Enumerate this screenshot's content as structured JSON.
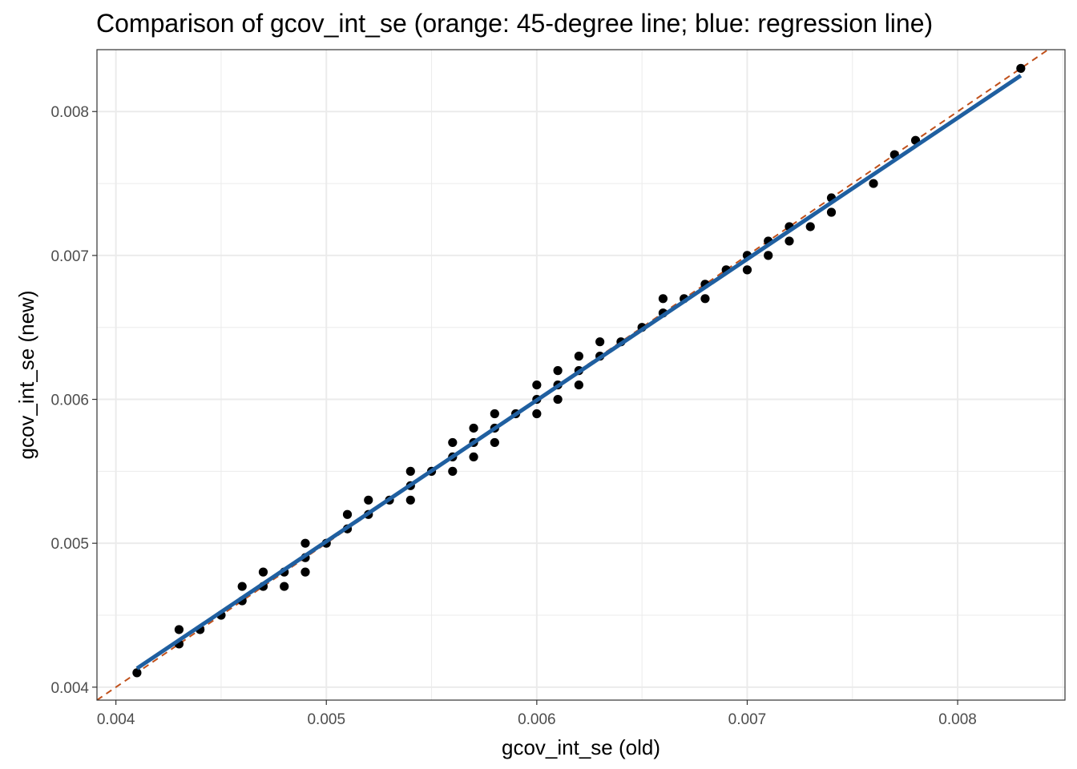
{
  "chart_data": {
    "type": "scatter",
    "title": "Comparison of gcov_int_se (orange: 45-degree line; blue: regression line)",
    "xlabel": "gcov_int_se (old)",
    "ylabel": "gcov_int_se (new)",
    "xlim": [
      0.00391,
      0.00851
    ],
    "ylim": [
      0.00391,
      0.00843
    ],
    "x_ticks": [
      0.004,
      0.005,
      0.006,
      0.007,
      0.008
    ],
    "x_tick_labels": [
      "0.004",
      "0.005",
      "0.006",
      "0.007",
      "0.008"
    ],
    "y_ticks": [
      0.004,
      0.005,
      0.006,
      0.007,
      0.008
    ],
    "y_tick_labels": [
      "0.004",
      "0.005",
      "0.006",
      "0.007",
      "0.008"
    ],
    "grid": true,
    "colors": {
      "points": "#000000",
      "identity_line": "#c0501a",
      "regression_line": "#1f5fa0",
      "grid": "#ebebeb",
      "panel_border": "#333333"
    },
    "points": [
      [
        0.0041,
        0.0041
      ],
      [
        0.0043,
        0.0044
      ],
      [
        0.0043,
        0.0043
      ],
      [
        0.0044,
        0.0044
      ],
      [
        0.0045,
        0.0045
      ],
      [
        0.0046,
        0.0047
      ],
      [
        0.0046,
        0.0046
      ],
      [
        0.0047,
        0.0048
      ],
      [
        0.0047,
        0.0047
      ],
      [
        0.0048,
        0.0048
      ],
      [
        0.0048,
        0.0047
      ],
      [
        0.0049,
        0.005
      ],
      [
        0.0049,
        0.0049
      ],
      [
        0.0049,
        0.0048
      ],
      [
        0.005,
        0.005
      ],
      [
        0.0051,
        0.0052
      ],
      [
        0.0051,
        0.0051
      ],
      [
        0.0052,
        0.0053
      ],
      [
        0.0052,
        0.0052
      ],
      [
        0.0053,
        0.0053
      ],
      [
        0.0054,
        0.0055
      ],
      [
        0.0054,
        0.0054
      ],
      [
        0.0054,
        0.0053
      ],
      [
        0.0055,
        0.0055
      ],
      [
        0.0056,
        0.0057
      ],
      [
        0.0056,
        0.0056
      ],
      [
        0.0056,
        0.0055
      ],
      [
        0.0057,
        0.0058
      ],
      [
        0.0057,
        0.0057
      ],
      [
        0.0057,
        0.0056
      ],
      [
        0.0058,
        0.0059
      ],
      [
        0.0058,
        0.0058
      ],
      [
        0.0058,
        0.0057
      ],
      [
        0.0059,
        0.0059
      ],
      [
        0.006,
        0.0061
      ],
      [
        0.006,
        0.006
      ],
      [
        0.006,
        0.0059
      ],
      [
        0.0061,
        0.0062
      ],
      [
        0.0061,
        0.0061
      ],
      [
        0.0061,
        0.006
      ],
      [
        0.0062,
        0.0063
      ],
      [
        0.0062,
        0.0062
      ],
      [
        0.0062,
        0.0061
      ],
      [
        0.0063,
        0.0064
      ],
      [
        0.0063,
        0.0063
      ],
      [
        0.0064,
        0.0064
      ],
      [
        0.0065,
        0.0065
      ],
      [
        0.0066,
        0.0067
      ],
      [
        0.0066,
        0.0066
      ],
      [
        0.0067,
        0.0067
      ],
      [
        0.0068,
        0.0068
      ],
      [
        0.0068,
        0.0067
      ],
      [
        0.0069,
        0.0069
      ],
      [
        0.007,
        0.007
      ],
      [
        0.007,
        0.0069
      ],
      [
        0.0071,
        0.0071
      ],
      [
        0.0071,
        0.007
      ],
      [
        0.0072,
        0.0072
      ],
      [
        0.0072,
        0.0071
      ],
      [
        0.0073,
        0.0072
      ],
      [
        0.0074,
        0.0074
      ],
      [
        0.0074,
        0.0073
      ],
      [
        0.0076,
        0.0075
      ],
      [
        0.0077,
        0.0077
      ],
      [
        0.0078,
        0.0078
      ],
      [
        0.0083,
        0.0083
      ]
    ],
    "regression_line": {
      "x": [
        0.0041,
        0.0083
      ],
      "y": [
        0.00413,
        0.00825
      ]
    },
    "identity_line": {
      "slope": 1,
      "intercept": 0
    }
  }
}
